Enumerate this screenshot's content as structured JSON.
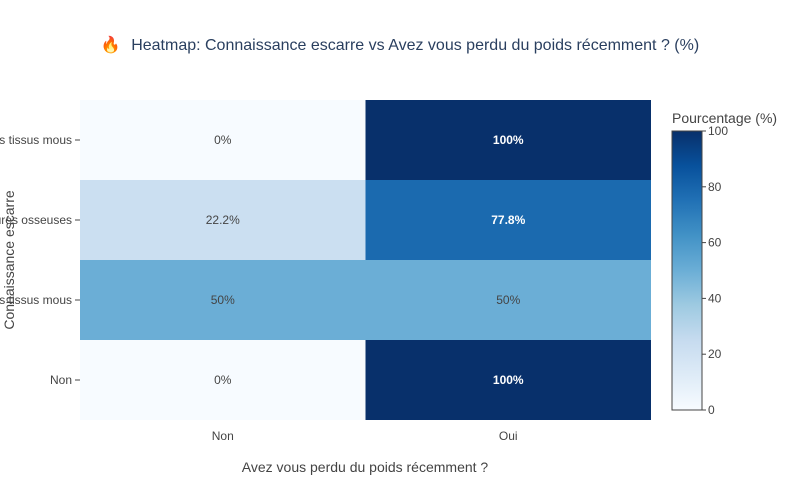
{
  "chart_data": {
    "type": "heatmap",
    "title_icon": "🔥",
    "title": "Heatmap: Connaissance escarre vs Avez vous perdu du poids récemment ? (%)",
    "xlabel": "Avez vous perdu du poids récemment ?",
    "ylabel": "Connaissance escarre",
    "x_categories": [
      "Non",
      "Oui"
    ],
    "y_categories": [
      "Oui, touchant les tissus mous",
      "Oui, touchant les structures osseuses",
      "Oui, touchant les tissus mous",
      "Non"
    ],
    "values": [
      [
        0,
        100
      ],
      [
        22.2,
        77.8
      ],
      [
        50,
        50
      ],
      [
        0,
        100
      ]
    ],
    "cell_labels": [
      [
        "0%",
        "100%"
      ],
      [
        "22.2%",
        "77.8%"
      ],
      [
        "50%",
        "50%"
      ],
      [
        "0%",
        "100%"
      ]
    ],
    "colorscale": "Blues",
    "colorbar": {
      "title": "Pourcentage (%)",
      "range": [
        0,
        100
      ],
      "ticks": [
        "0",
        "20",
        "40",
        "60",
        "80",
        "100"
      ]
    }
  }
}
